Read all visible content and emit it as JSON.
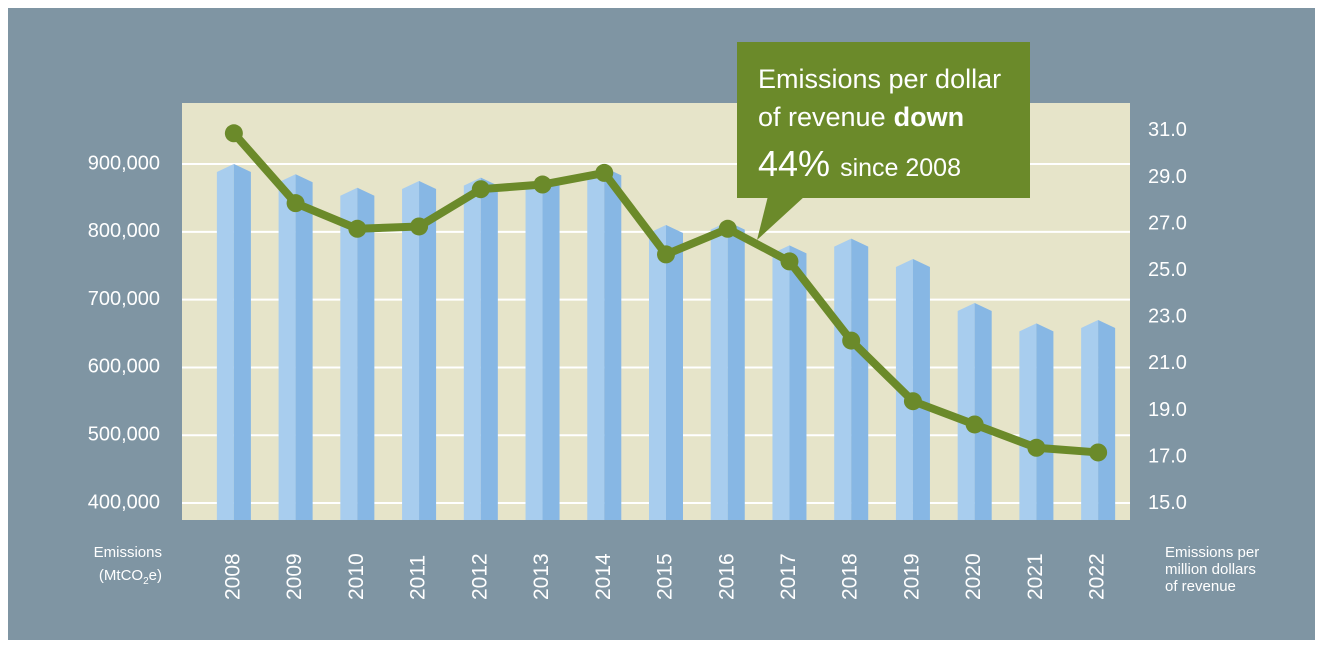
{
  "chart_data": {
    "type": "bar_line",
    "categories": [
      "2008",
      "2009",
      "2010",
      "2011",
      "2012",
      "2013",
      "2014",
      "2015",
      "2016",
      "2017",
      "2018",
      "2019",
      "2020",
      "2021",
      "2022"
    ],
    "series": [
      {
        "type": "bar",
        "color": "#a8cdee",
        "values": [
          900000,
          885000,
          865000,
          875000,
          880000,
          880000,
          895000,
          810000,
          815000,
          780000,
          790000,
          760000,
          695000,
          665000,
          670000
        ]
      },
      {
        "type": "line",
        "axis": "y2",
        "color": "#6b8a2a",
        "values": [
          30.9,
          27.9,
          26.8,
          26.9,
          28.5,
          28.7,
          29.2,
          25.7,
          26.8,
          25.4,
          22.0,
          19.4,
          18.4,
          17.4,
          17.2
        ]
      }
    ],
    "ylim": [
      375000,
      990000
    ],
    "yticks": [
      {
        "value": 400000,
        "label": "400,000"
      },
      {
        "value": 500000,
        "label": "500,000"
      },
      {
        "value": 600000,
        "label": "600,000"
      },
      {
        "value": 700000,
        "label": "700,000"
      },
      {
        "value": 800000,
        "label": "800,000"
      },
      {
        "value": 900000,
        "label": "900,000"
      }
    ],
    "y2lim": [
      14.3,
      32.2
    ],
    "y2ticks": [
      {
        "value": 15,
        "label": "15.0"
      },
      {
        "value": 17,
        "label": "17.0"
      },
      {
        "value": 19,
        "label": "19.0"
      },
      {
        "value": 21,
        "label": "21.0"
      },
      {
        "value": 23,
        "label": "23.0"
      },
      {
        "value": 25,
        "label": "25.0"
      },
      {
        "value": 27,
        "label": "27.0"
      },
      {
        "value": 29,
        "label": "29.0"
      },
      {
        "value": 31,
        "label": "31.0"
      }
    ],
    "grid": true,
    "y_label": {
      "line1": "Emissions",
      "unit_pre": "(MtCO",
      "unit_sub": "2",
      "unit_post": "e)"
    },
    "y2_label": [
      "Emissions per",
      "million dollars",
      "of revenue"
    ],
    "annotation": {
      "line1": "Emissions per dollar",
      "line2": "of revenue",
      "line2_bold": "down",
      "line3_big": "44%",
      "line3": "since 2008"
    }
  }
}
